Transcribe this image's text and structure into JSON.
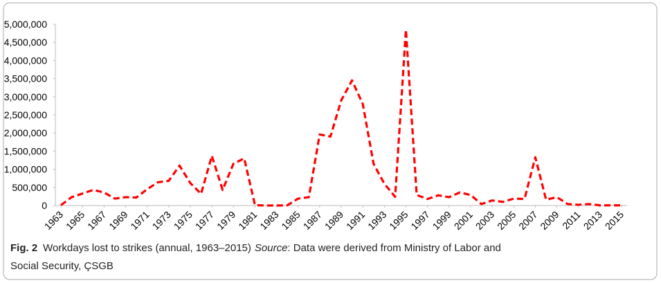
{
  "chart_data": {
    "type": "line",
    "x": [
      1963,
      1964,
      1965,
      1966,
      1967,
      1968,
      1969,
      1970,
      1971,
      1972,
      1973,
      1974,
      1975,
      1976,
      1977,
      1978,
      1979,
      1980,
      1981,
      1982,
      1983,
      1984,
      1985,
      1986,
      1987,
      1988,
      1989,
      1990,
      1991,
      1992,
      1993,
      1994,
      1995,
      1996,
      1997,
      1998,
      1999,
      2000,
      2001,
      2002,
      2003,
      2004,
      2005,
      2006,
      2007,
      2008,
      2009,
      2010,
      2011,
      2012,
      2013,
      2014,
      2015
    ],
    "xlim": [
      1963,
      2015
    ],
    "xticks": [
      1963,
      1965,
      1967,
      1969,
      1971,
      1973,
      1975,
      1977,
      1979,
      1981,
      1983,
      1985,
      1987,
      1989,
      1991,
      1993,
      1995,
      1997,
      1999,
      2001,
      2003,
      2005,
      2007,
      2009,
      2011,
      2013,
      2015
    ],
    "series": [
      {
        "color": "#ff0000",
        "values": [
          10000,
          230000,
          330000,
          430000,
          360000,
          190000,
          230000,
          220000,
          450000,
          640000,
          680000,
          1100000,
          620000,
          320000,
          1370000,
          430000,
          1150000,
          1300000,
          10000,
          0,
          0,
          5000,
          190000,
          230000,
          1960000,
          1900000,
          2900000,
          3450000,
          2800000,
          1150000,
          600000,
          240000,
          4850000,
          290000,
          180000,
          280000,
          230000,
          360000,
          290000,
          40000,
          140000,
          100000,
          190000,
          180000,
          1330000,
          160000,
          230000,
          40000,
          20000,
          40000,
          5000,
          5000,
          5000
        ]
      }
    ],
    "ylim": [
      0,
      5000000
    ],
    "yticks": [
      0,
      {
        "value": 500000,
        "label": "500,000"
      },
      {
        "value": 1000000,
        "label": "1,000,000"
      },
      {
        "value": 1500000,
        "label": "1,500,000"
      },
      {
        "value": 2000000,
        "label": "2,000,000"
      },
      {
        "value": 2500000,
        "label": "2,500,000"
      },
      {
        "value": 3000000,
        "label": "3,000,000"
      },
      {
        "value": 3500000,
        "label": "3,500,000"
      },
      {
        "value": 4000000,
        "label": "4,000,000"
      },
      {
        "value": 4500000,
        "label": "4,500,000"
      },
      {
        "value": 5000000,
        "label": "5,000,000"
      }
    ],
    "grid": false
  },
  "caption": {
    "label": "Fig. 2",
    "text": "Workdays lost to strikes (annual, 1963–2015)",
    "source_label": "Source",
    "source_text": ": Data were derived from Ministry of Labor and",
    "source_text_2": "Social Security, ÇSGB"
  }
}
